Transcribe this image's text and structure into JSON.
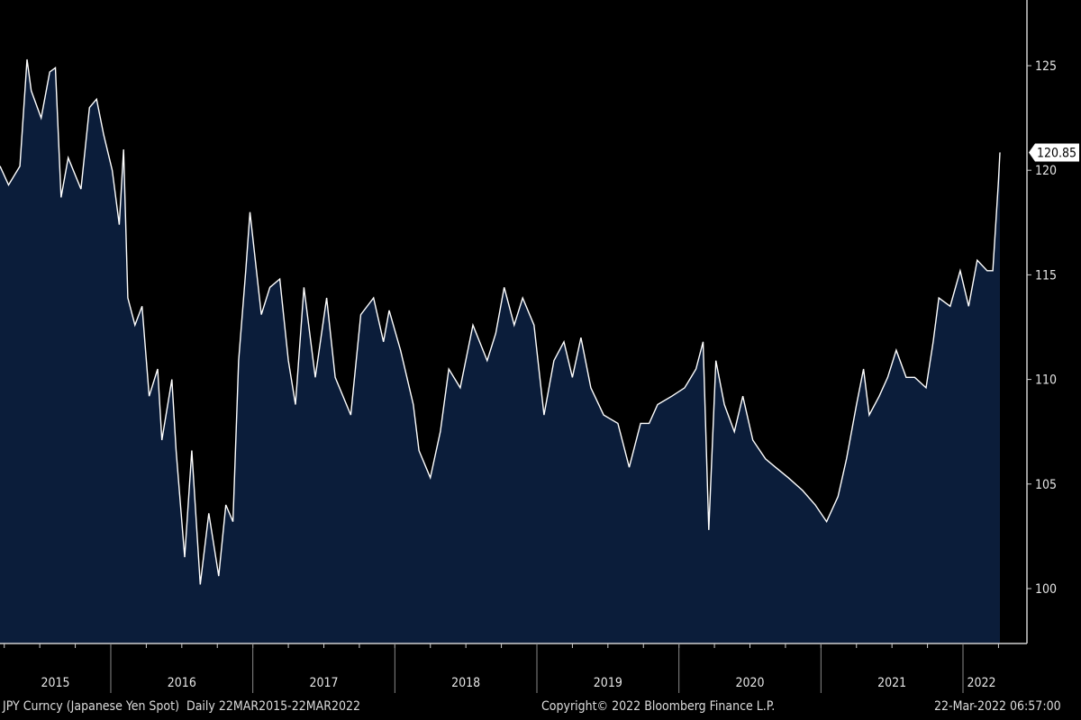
{
  "chart_data": {
    "type": "area",
    "title": "JPY Curncy (Japanese Yen Spot)",
    "frequency": "Daily",
    "range_label": "22MAR2015-22MAR2022",
    "xlim": [
      2015.22,
      2022.26
    ],
    "ylim": [
      97.5,
      127.5
    ],
    "y_ticks": [
      100,
      105,
      110,
      115,
      120,
      125
    ],
    "x_tick_labels": [
      "2015",
      "2016",
      "2017",
      "2018",
      "2019",
      "2020",
      "2021",
      "2022"
    ],
    "year_boundaries": [
      2016,
      2017,
      2018,
      2019,
      2020,
      2021,
      2022
    ],
    "last_value": 120.85,
    "last_value_label": "120.85",
    "colors": {
      "fill": "#0b1d3a",
      "line": "#ffffff",
      "background": "#000000"
    },
    "points": [
      [
        2015.22,
        120.2
      ],
      [
        2015.28,
        119.3
      ],
      [
        2015.36,
        120.2
      ],
      [
        2015.41,
        125.3
      ],
      [
        2015.44,
        123.8
      ],
      [
        2015.51,
        122.5
      ],
      [
        2015.57,
        124.7
      ],
      [
        2015.61,
        124.9
      ],
      [
        2015.65,
        118.7
      ],
      [
        2015.7,
        120.6
      ],
      [
        2015.79,
        119.1
      ],
      [
        2015.85,
        123.0
      ],
      [
        2015.9,
        123.4
      ],
      [
        2015.95,
        121.7
      ],
      [
        2016.01,
        120.0
      ],
      [
        2016.06,
        117.4
      ],
      [
        2016.09,
        121.0
      ],
      [
        2016.12,
        113.9
      ],
      [
        2016.17,
        112.6
      ],
      [
        2016.22,
        113.5
      ],
      [
        2016.27,
        109.2
      ],
      [
        2016.33,
        110.5
      ],
      [
        2016.36,
        107.1
      ],
      [
        2016.43,
        110.0
      ],
      [
        2016.46,
        106.6
      ],
      [
        2016.52,
        101.5
      ],
      [
        2016.57,
        106.6
      ],
      [
        2016.63,
        100.2
      ],
      [
        2016.69,
        103.6
      ],
      [
        2016.76,
        100.6
      ],
      [
        2016.81,
        104.0
      ],
      [
        2016.86,
        103.2
      ],
      [
        2016.9,
        110.9
      ],
      [
        2016.95,
        115.2
      ],
      [
        2016.98,
        118.0
      ],
      [
        2017.06,
        113.1
      ],
      [
        2017.12,
        114.4
      ],
      [
        2017.19,
        114.8
      ],
      [
        2017.25,
        110.9
      ],
      [
        2017.3,
        108.8
      ],
      [
        2017.36,
        114.4
      ],
      [
        2017.44,
        110.1
      ],
      [
        2017.52,
        113.9
      ],
      [
        2017.58,
        110.1
      ],
      [
        2017.69,
        108.3
      ],
      [
        2017.76,
        113.1
      ],
      [
        2017.85,
        113.9
      ],
      [
        2017.92,
        111.8
      ],
      [
        2017.96,
        113.3
      ],
      [
        2018.04,
        111.4
      ],
      [
        2018.13,
        108.8
      ],
      [
        2018.17,
        106.6
      ],
      [
        2018.25,
        105.3
      ],
      [
        2018.32,
        107.5
      ],
      [
        2018.38,
        110.5
      ],
      [
        2018.46,
        109.6
      ],
      [
        2018.55,
        112.6
      ],
      [
        2018.65,
        110.9
      ],
      [
        2018.71,
        112.2
      ],
      [
        2018.77,
        114.4
      ],
      [
        2018.84,
        112.6
      ],
      [
        2018.9,
        113.9
      ],
      [
        2018.98,
        112.6
      ],
      [
        2019.05,
        108.3
      ],
      [
        2019.12,
        110.9
      ],
      [
        2019.19,
        111.8
      ],
      [
        2019.25,
        110.1
      ],
      [
        2019.31,
        112.0
      ],
      [
        2019.38,
        109.6
      ],
      [
        2019.47,
        108.3
      ],
      [
        2019.57,
        107.9
      ],
      [
        2019.65,
        105.8
      ],
      [
        2019.73,
        107.9
      ],
      [
        2019.79,
        107.9
      ],
      [
        2019.85,
        108.8
      ],
      [
        2019.95,
        109.2
      ],
      [
        2020.04,
        109.6
      ],
      [
        2020.12,
        110.5
      ],
      [
        2020.17,
        111.8
      ],
      [
        2020.21,
        102.8
      ],
      [
        2020.26,
        110.9
      ],
      [
        2020.32,
        108.8
      ],
      [
        2020.39,
        107.5
      ],
      [
        2020.45,
        109.2
      ],
      [
        2020.52,
        107.1
      ],
      [
        2020.61,
        106.2
      ],
      [
        2020.68,
        105.8
      ],
      [
        2020.77,
        105.3
      ],
      [
        2020.87,
        104.7
      ],
      [
        2020.96,
        104.0
      ],
      [
        2021.04,
        103.2
      ],
      [
        2021.12,
        104.4
      ],
      [
        2021.18,
        106.2
      ],
      [
        2021.25,
        108.8
      ],
      [
        2021.3,
        110.5
      ],
      [
        2021.34,
        108.3
      ],
      [
        2021.41,
        109.2
      ],
      [
        2021.47,
        110.1
      ],
      [
        2021.53,
        111.4
      ],
      [
        2021.6,
        110.1
      ],
      [
        2021.66,
        110.1
      ],
      [
        2021.74,
        109.6
      ],
      [
        2021.79,
        111.8
      ],
      [
        2021.83,
        113.9
      ],
      [
        2021.91,
        113.5
      ],
      [
        2021.98,
        115.2
      ],
      [
        2022.04,
        113.5
      ],
      [
        2022.1,
        115.7
      ],
      [
        2022.17,
        115.2
      ],
      [
        2022.21,
        115.2
      ],
      [
        2022.25,
        119.5
      ],
      [
        2022.26,
        120.85
      ]
    ]
  },
  "footer": {
    "security": "JPY Curncy (Japanese Yen Spot)",
    "period": "Daily 22MAR2015-22MAR2022",
    "copyright": "Copyright© 2022 Bloomberg Finance L.P.",
    "timestamp": "22-Mar-2022 06:57:00"
  }
}
